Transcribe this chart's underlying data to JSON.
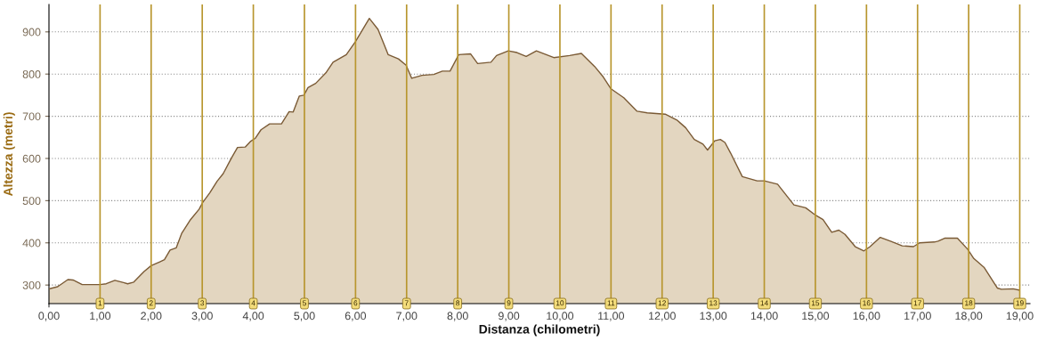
{
  "chart_data": {
    "type": "area",
    "xlabel": "Distanza (chilometri)",
    "ylabel": "Altezza (metri)",
    "x": [
      0,
      0.17,
      0.37,
      0.47,
      0.65,
      1.0,
      1.12,
      1.29,
      1.46,
      1.54,
      1.66,
      1.86,
      2.0,
      2.17,
      2.26,
      2.37,
      2.49,
      2.6,
      2.77,
      2.94,
      3.0,
      3.15,
      3.29,
      3.41,
      3.58,
      3.69,
      3.84,
      3.95,
      4.04,
      4.15,
      4.32,
      4.55,
      4.7,
      4.78,
      4.9,
      4.99,
      5.07,
      5.22,
      5.42,
      5.56,
      5.82,
      6.0,
      6.27,
      6.44,
      6.64,
      6.84,
      6.99,
      7.1,
      7.3,
      7.53,
      7.7,
      7.85,
      8.02,
      8.25,
      8.39,
      8.65,
      8.76,
      8.99,
      9.16,
      9.34,
      9.54,
      9.88,
      10.19,
      10.42,
      10.68,
      10.85,
      11.0,
      11.25,
      11.51,
      11.71,
      12.06,
      12.29,
      12.46,
      12.63,
      12.8,
      12.89,
      13.03,
      13.14,
      13.23,
      13.34,
      13.57,
      13.86,
      14.0,
      14.26,
      14.58,
      14.81,
      15.01,
      15.15,
      15.32,
      15.46,
      15.58,
      15.78,
      15.95,
      16.07,
      16.27,
      16.47,
      16.7,
      16.92,
      17.04,
      17.33,
      17.4,
      17.53,
      17.78,
      17.98,
      18.1,
      18.3,
      18.56,
      18.64,
      18.87,
      18.99
    ],
    "series": [
      {
        "color": "#e3d6c0",
        "values": [
          291,
          296,
          313,
          312,
          301,
          301,
          303,
          311,
          306,
          303,
          307,
          332,
          346,
          355,
          360,
          383,
          388,
          423,
          455,
          480,
          494,
          519,
          546,
          564,
          603,
          626,
          627,
          641,
          648,
          668,
          682,
          682,
          711,
          710,
          748,
          750,
          768,
          778,
          803,
          828,
          846,
          877,
          932,
          906,
          846,
          836,
          821,
          790,
          797,
          799,
          807,
          807,
          846,
          848,
          825,
          828,
          844,
          855,
          851,
          842,
          855,
          839,
          844,
          849,
          818,
          793,
          765,
          744,
          712,
          708,
          705,
          691,
          673,
          645,
          634,
          620,
          642,
          645,
          638,
          613,
          557,
          547,
          547,
          539,
          490,
          483,
          465,
          455,
          425,
          430,
          420,
          391,
          381,
          391,
          413,
          404,
          393,
          391,
          400,
          402,
          404,
          411,
          411,
          385,
          363,
          342,
          293,
          290,
          291,
          288
        ]
      }
    ],
    "xlim": [
      0,
      19.2
    ],
    "ylim": [
      256,
      965
    ],
    "xticks": [
      {
        "value": 0,
        "label": "0,00"
      },
      {
        "value": 1,
        "label": "1,00"
      },
      {
        "value": 2,
        "label": "2,00"
      },
      {
        "value": 3,
        "label": "3,00"
      },
      {
        "value": 4,
        "label": "4,00"
      },
      {
        "value": 5,
        "label": "5,00"
      },
      {
        "value": 6,
        "label": "6,00"
      },
      {
        "value": 7,
        "label": "7,00"
      },
      {
        "value": 8,
        "label": "8,00"
      },
      {
        "value": 9,
        "label": "9,00"
      },
      {
        "value": 10,
        "label": "10,00"
      },
      {
        "value": 11,
        "label": "11,00"
      },
      {
        "value": 12,
        "label": "12,00"
      },
      {
        "value": 13,
        "label": "13,00"
      },
      {
        "value": 14,
        "label": "14,00"
      },
      {
        "value": 15,
        "label": "15,00"
      },
      {
        "value": 16,
        "label": "16,00"
      },
      {
        "value": 17,
        "label": "17,00"
      },
      {
        "value": 18,
        "label": "18,00"
      },
      {
        "value": 19,
        "label": "19,00"
      }
    ],
    "yticks": [
      300,
      400,
      500,
      600,
      700,
      800,
      900
    ],
    "grid": "y",
    "legend": false,
    "ref_lines": [
      {
        "axis": "x",
        "value": 1,
        "label": "1",
        "color": "#b8962e"
      },
      {
        "axis": "x",
        "value": 2,
        "label": "2",
        "color": "#b8962e"
      },
      {
        "axis": "x",
        "value": 3,
        "label": "3",
        "color": "#b8962e"
      },
      {
        "axis": "x",
        "value": 4,
        "label": "4",
        "color": "#b8962e"
      },
      {
        "axis": "x",
        "value": 5,
        "label": "5",
        "color": "#b8962e"
      },
      {
        "axis": "x",
        "value": 6,
        "label": "6",
        "color": "#b8962e"
      },
      {
        "axis": "x",
        "value": 7,
        "label": "7",
        "color": "#b8962e"
      },
      {
        "axis": "x",
        "value": 8,
        "label": "8",
        "color": "#b8962e"
      },
      {
        "axis": "x",
        "value": 9,
        "label": "9",
        "color": "#b8962e"
      },
      {
        "axis": "x",
        "value": 10,
        "label": "10",
        "color": "#b8962e"
      },
      {
        "axis": "x",
        "value": 11,
        "label": "11",
        "color": "#b8962e"
      },
      {
        "axis": "x",
        "value": 12,
        "label": "12",
        "color": "#b8962e"
      },
      {
        "axis": "x",
        "value": 13,
        "label": "13",
        "color": "#b8962e"
      },
      {
        "axis": "x",
        "value": 14,
        "label": "14",
        "color": "#b8962e"
      },
      {
        "axis": "x",
        "value": 15,
        "label": "15",
        "color": "#b8962e"
      },
      {
        "axis": "x",
        "value": 16,
        "label": "16",
        "color": "#b8962e"
      },
      {
        "axis": "x",
        "value": 17,
        "label": "17",
        "color": "#b8962e"
      },
      {
        "axis": "x",
        "value": 18,
        "label": "18",
        "color": "#b8962e"
      },
      {
        "axis": "x",
        "value": 19,
        "label": "19",
        "color": "#b8962e"
      }
    ]
  }
}
